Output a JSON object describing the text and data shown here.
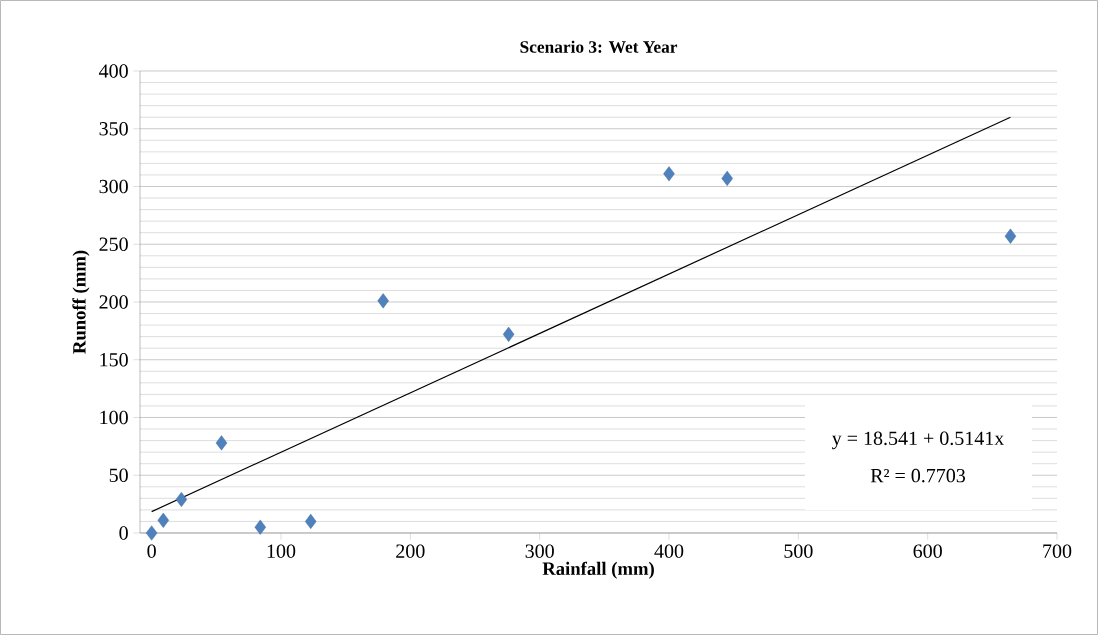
{
  "chart_data": {
    "type": "scatter",
    "title": "Scenario 3: Wet Year",
    "xlabel": "Rainfall (mm)",
    "ylabel": "Runoff (mm)",
    "series": [
      {
        "type": "scatter",
        "color": "#4f81bd",
        "x": [
          0,
          9,
          23,
          54,
          84,
          123,
          179,
          276,
          400,
          445,
          664
        ],
        "values": [
          0,
          11,
          29,
          78,
          5,
          10,
          201,
          172,
          311,
          307,
          257
        ]
      },
      {
        "type": "line",
        "marker": "none",
        "color": "#000000",
        "x": [
          0,
          664
        ],
        "values": [
          18.5,
          360
        ]
      }
    ],
    "marker": "diamond",
    "grid": "y",
    "xlim": [
      -9,
      700
    ],
    "xticks": [
      0,
      100,
      200,
      300,
      400,
      500,
      600,
      700
    ],
    "ylim": [
      0,
      400
    ],
    "yticks": [
      0,
      50,
      100,
      150,
      200,
      250,
      300,
      350,
      400
    ],
    "annotations": [
      "y = 18.541 + 0.5141x",
      "R² = 0.7703"
    ]
  }
}
